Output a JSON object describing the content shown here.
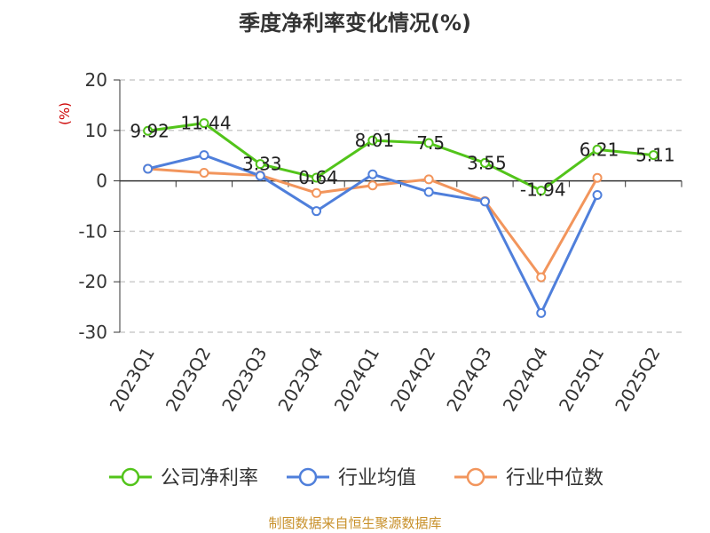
{
  "title": "季度净利率变化情况(%)",
  "source": "制图数据来自恒生聚源数据库",
  "chart_data": {
    "type": "line",
    "title": "季度净利率变化情况(%)",
    "ylabel": "(%)",
    "ylim": [
      -30,
      20
    ],
    "yticks": [
      20,
      10,
      0,
      -10,
      -20,
      -30
    ],
    "grid": true,
    "legend_position": "bottom",
    "categories": [
      "2023Q1",
      "2023Q2",
      "2023Q3",
      "2023Q4",
      "2024Q1",
      "2024Q2",
      "2024Q3",
      "2024Q4",
      "2025Q1",
      "2025Q2"
    ],
    "series": [
      {
        "name": "公司净利率",
        "color": "#52c41a",
        "values": [
          9.92,
          11.44,
          3.33,
          0.64,
          8.01,
          7.5,
          3.55,
          -1.94,
          6.21,
          5.11
        ],
        "labels": [
          "9.92",
          "11.44",
          "3.33",
          "0.64",
          "8.01",
          "7.5",
          "3.55",
          "-1.94",
          "6.21",
          "5.11"
        ]
      },
      {
        "name": "行业均值",
        "color": "#4f7fdb",
        "values": [
          2.4,
          5.1,
          1.0,
          -6.0,
          1.3,
          -2.2,
          -4.1,
          -26.2,
          -2.8,
          null
        ]
      },
      {
        "name": "行业中位数",
        "color": "#f2955c",
        "values": [
          2.4,
          1.6,
          1.1,
          -2.4,
          -0.9,
          0.3,
          -4.0,
          -19.1,
          0.6,
          null
        ]
      }
    ]
  }
}
